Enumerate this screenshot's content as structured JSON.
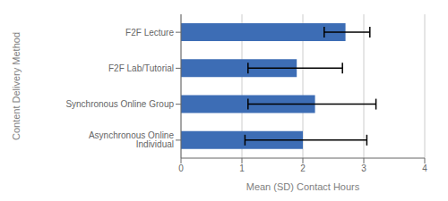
{
  "chart_data": {
    "type": "bar",
    "orientation": "horizontal",
    "categories": [
      "Asynchronous Online Individual",
      "Synchronous Online Group",
      "F2F Lab/Tutorial",
      "F2F Lecture"
    ],
    "values": [
      2.0,
      2.2,
      1.9,
      2.7
    ],
    "errors_neg": [
      0.95,
      1.1,
      0.8,
      0.35
    ],
    "errors_pos": [
      1.05,
      1.0,
      0.75,
      0.4
    ],
    "color": "#3D6DB5",
    "xlabel": "Mean (SD) Contact Hours",
    "ylabel": "Content Delivery Method",
    "xlim": [
      0,
      4
    ],
    "xticks": [
      0,
      1,
      2,
      3,
      4
    ],
    "grid": true
  }
}
